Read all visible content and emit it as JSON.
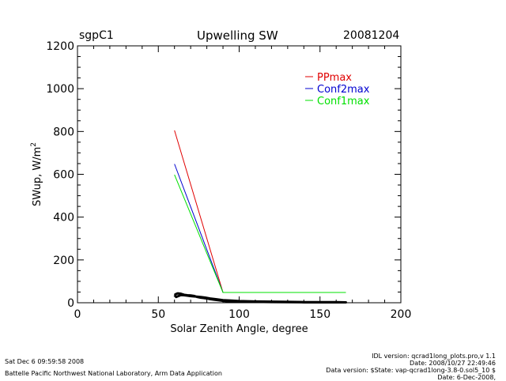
{
  "header": {
    "site": "sgpC1",
    "title": "Upwelling SW",
    "date": "20081204"
  },
  "footer": {
    "timestamp": "Sat Dec  6 09:59:58 2008",
    "lab": "Battelle Pacific Northwest National Laboratory, Arm Data Application",
    "idl_version": "IDL version: qcrad1long_plots.pro,v 1.1",
    "idl_date": "Date: 2008/10/27 22:49:46",
    "data_version": "Data version: $State: vap-qcrad1long-3.8-0.sol5_10 $",
    "data_date": "Date: 6-Dec-2008,"
  },
  "chart_data": {
    "type": "line",
    "title": "Upwelling SW",
    "xlabel": "Solar Zenith Angle, degree",
    "ylabel": "SWup, W/m",
    "ylabel_sup": "2",
    "xlim": [
      0,
      200
    ],
    "ylim": [
      0,
      1200
    ],
    "xticks": [
      0,
      50,
      100,
      150,
      200
    ],
    "yticks": [
      0,
      200,
      400,
      600,
      800,
      1000,
      1200
    ],
    "grid": false,
    "legend_position": "top-right",
    "series": [
      {
        "name": "PPmax",
        "color": "#e00000",
        "x": [
          60,
          90,
          166
        ],
        "y": [
          805,
          48,
          48
        ]
      },
      {
        "name": "Conf2max",
        "color": "#0000d0",
        "x": [
          60,
          90,
          166
        ],
        "y": [
          648,
          48,
          48
        ]
      },
      {
        "name": "Conf1max",
        "color": "#00e000",
        "x": [
          60,
          90,
          166
        ],
        "y": [
          598,
          48,
          48
        ]
      }
    ],
    "observations": {
      "color": "#000000",
      "x": [
        60,
        61,
        62,
        64,
        66,
        68,
        70,
        72,
        74,
        76,
        78,
        80,
        82,
        85,
        88,
        91,
        95,
        100,
        110,
        120,
        130,
        140,
        150,
        160,
        166,
        160,
        150,
        140,
        130,
        120,
        110,
        100,
        95,
        90,
        86,
        82,
        79,
        76,
        73,
        70,
        68,
        66,
        64,
        62,
        61,
        60
      ],
      "y": [
        36,
        41,
        44,
        42,
        37,
        35,
        34,
        32,
        27,
        24,
        22,
        20,
        17,
        14,
        11,
        8,
        6,
        5,
        4,
        3,
        3,
        2,
        2,
        2,
        2,
        3,
        3,
        3,
        4,
        5,
        6,
        8,
        10,
        12,
        16,
        20,
        24,
        27,
        29,
        31,
        33,
        35,
        36,
        30,
        27,
        36
      ]
    }
  }
}
